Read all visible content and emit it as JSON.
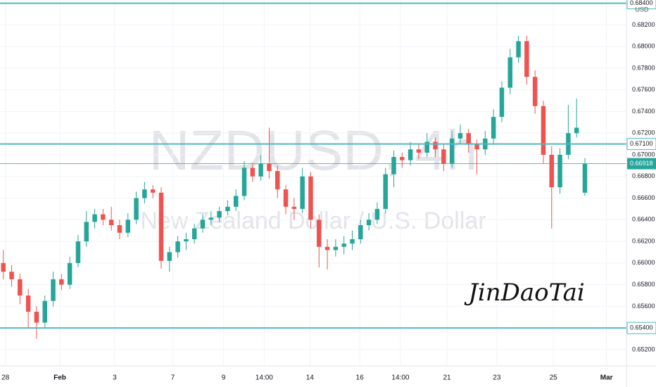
{
  "chart_data": {
    "type": "candlestick",
    "title": "NZDUSD, 4h",
    "subtitle": "New Zealand Dollar / U.S. Dollar",
    "annotation": "JinDaoTai",
    "currency": "USD",
    "up_color": "#26a69a",
    "down_color": "#ef5350",
    "line_color": "#4fb8c6",
    "grid": true,
    "xlim": [
      -0.4,
      75
    ],
    "ylim": [
      0.6505,
      0.6843
    ],
    "xticks": [
      {
        "value": 0.25,
        "label": "28"
      },
      {
        "value": 6.8,
        "label": "Feb"
      },
      {
        "value": 13.4,
        "label": "3"
      },
      {
        "value": 20.4,
        "label": "7"
      },
      {
        "value": 26.5,
        "label": "9"
      },
      {
        "value": 31.4,
        "label": "14:00"
      },
      {
        "value": 36.9,
        "label": "14"
      },
      {
        "value": 42.9,
        "label": "16"
      },
      {
        "value": 47.8,
        "label": "14:00"
      },
      {
        "value": 53.4,
        "label": "21"
      },
      {
        "value": 59.4,
        "label": "23"
      },
      {
        "value": 66.2,
        "label": "25"
      },
      {
        "value": 72.6,
        "label": "Mar"
      }
    ],
    "yticks": [
      {
        "value": 0.652,
        "label": "0.65200"
      },
      {
        "value": 0.656,
        "label": "0.65600"
      },
      {
        "value": 0.658,
        "label": "0.65800"
      },
      {
        "value": 0.66,
        "label": "0.66000"
      },
      {
        "value": 0.662,
        "label": "0.66200"
      },
      {
        "value": 0.664,
        "label": "0.66400"
      },
      {
        "value": 0.666,
        "label": "0.66600"
      },
      {
        "value": 0.668,
        "label": "0.66800"
      },
      {
        "value": 0.67,
        "label": "0.67000"
      },
      {
        "value": 0.672,
        "label": "0.67200"
      },
      {
        "value": 0.674,
        "label": "0.67400"
      },
      {
        "value": 0.676,
        "label": "0.67600"
      },
      {
        "value": 0.678,
        "label": "0.67800"
      },
      {
        "value": 0.68,
        "label": "0.68000"
      },
      {
        "value": 0.682,
        "label": "0.68200"
      }
    ],
    "hlines": [
      {
        "value": 0.684,
        "label": "0.68400"
      },
      {
        "value": 0.671,
        "label": "0.67100"
      },
      {
        "value": 0.654,
        "label": "0.65400"
      }
    ],
    "last_price": {
      "value": 0.66918,
      "label": "0.66918"
    },
    "candles": [
      [
        0.66,
        0.6612,
        0.6585,
        0.6592
      ],
      [
        0.6592,
        0.6598,
        0.6578,
        0.6585
      ],
      [
        0.6585,
        0.659,
        0.6562,
        0.657
      ],
      [
        0.657,
        0.6576,
        0.654,
        0.6555
      ],
      [
        0.6555,
        0.656,
        0.653,
        0.6545
      ],
      [
        0.6545,
        0.657,
        0.654,
        0.6565
      ],
      [
        0.6565,
        0.6592,
        0.656,
        0.6585
      ],
      [
        0.6585,
        0.659,
        0.6575,
        0.658
      ],
      [
        0.658,
        0.6606,
        0.6576,
        0.66
      ],
      [
        0.66,
        0.6626,
        0.6596,
        0.662
      ],
      [
        0.662,
        0.6648,
        0.6615,
        0.6638
      ],
      [
        0.6638,
        0.665,
        0.6632,
        0.6645
      ],
      [
        0.6645,
        0.665,
        0.6635,
        0.664
      ],
      [
        0.664,
        0.6652,
        0.663,
        0.6635
      ],
      [
        0.6635,
        0.664,
        0.6622,
        0.6628
      ],
      [
        0.6628,
        0.6646,
        0.6624,
        0.664
      ],
      [
        0.664,
        0.6666,
        0.6636,
        0.666
      ],
      [
        0.666,
        0.6675,
        0.6655,
        0.6668
      ],
      [
        0.6668,
        0.6672,
        0.666,
        0.6665
      ],
      [
        0.6665,
        0.667,
        0.6595,
        0.6602
      ],
      [
        0.6602,
        0.6615,
        0.6592,
        0.661
      ],
      [
        0.661,
        0.6625,
        0.6605,
        0.662
      ],
      [
        0.662,
        0.6628,
        0.6612,
        0.6622
      ],
      [
        0.6622,
        0.6636,
        0.6618,
        0.6632
      ],
      [
        0.6632,
        0.6645,
        0.6628,
        0.664
      ],
      [
        0.664,
        0.6648,
        0.6635,
        0.6642
      ],
      [
        0.6642,
        0.6652,
        0.6638,
        0.6648
      ],
      [
        0.6648,
        0.6658,
        0.6644,
        0.6652
      ],
      [
        0.6652,
        0.6668,
        0.6648,
        0.6662
      ],
      [
        0.6662,
        0.6694,
        0.6658,
        0.6688
      ],
      [
        0.6688,
        0.6692,
        0.6675,
        0.668
      ],
      [
        0.668,
        0.67,
        0.6676,
        0.6692
      ],
      [
        0.6692,
        0.6725,
        0.6678,
        0.6685
      ],
      [
        0.6685,
        0.669,
        0.666,
        0.6668
      ],
      [
        0.6668,
        0.6672,
        0.6645,
        0.6652
      ],
      [
        0.6652,
        0.666,
        0.664,
        0.665
      ],
      [
        0.665,
        0.6688,
        0.6646,
        0.668
      ],
      [
        0.668,
        0.6684,
        0.6632,
        0.664
      ],
      [
        0.664,
        0.6645,
        0.6596,
        0.6615
      ],
      [
        0.6615,
        0.6622,
        0.6594,
        0.6612
      ],
      [
        0.6612,
        0.6622,
        0.6606,
        0.6615
      ],
      [
        0.6615,
        0.6625,
        0.6608,
        0.6618
      ],
      [
        0.6618,
        0.663,
        0.6612,
        0.6622
      ],
      [
        0.6622,
        0.664,
        0.6618,
        0.6635
      ],
      [
        0.6635,
        0.6646,
        0.663,
        0.664
      ],
      [
        0.664,
        0.6656,
        0.6636,
        0.665
      ],
      [
        0.665,
        0.6688,
        0.6646,
        0.6682
      ],
      [
        0.6682,
        0.6704,
        0.667,
        0.6698
      ],
      [
        0.6698,
        0.6702,
        0.6688,
        0.6695
      ],
      [
        0.6695,
        0.6712,
        0.669,
        0.6705
      ],
      [
        0.6705,
        0.671,
        0.6696,
        0.6702
      ],
      [
        0.6702,
        0.672,
        0.6698,
        0.6712
      ],
      [
        0.6712,
        0.6716,
        0.6698,
        0.6705
      ],
      [
        0.6705,
        0.671,
        0.6685,
        0.6692
      ],
      [
        0.6692,
        0.6722,
        0.6688,
        0.6715
      ],
      [
        0.6715,
        0.6728,
        0.671,
        0.672
      ],
      [
        0.672,
        0.6724,
        0.6702,
        0.671
      ],
      [
        0.671,
        0.6714,
        0.6682,
        0.6705
      ],
      [
        0.6705,
        0.6722,
        0.67,
        0.6715
      ],
      [
        0.6715,
        0.6742,
        0.671,
        0.6735
      ],
      [
        0.6735,
        0.6768,
        0.673,
        0.6762
      ],
      [
        0.6762,
        0.6798,
        0.6756,
        0.679
      ],
      [
        0.679,
        0.681,
        0.6785,
        0.6805
      ],
      [
        0.6805,
        0.681,
        0.6765,
        0.6772
      ],
      [
        0.6772,
        0.6778,
        0.6738,
        0.6745
      ],
      [
        0.6745,
        0.675,
        0.6692,
        0.67
      ],
      [
        0.67,
        0.6708,
        0.6632,
        0.667
      ],
      [
        0.667,
        0.6706,
        0.6664,
        0.67
      ],
      [
        0.67,
        0.6746,
        0.6696,
        0.672
      ],
      [
        0.672,
        0.6752,
        0.6716,
        0.6725
      ],
      [
        0.6665,
        0.6697,
        0.6662,
        0.66918
      ]
    ]
  }
}
